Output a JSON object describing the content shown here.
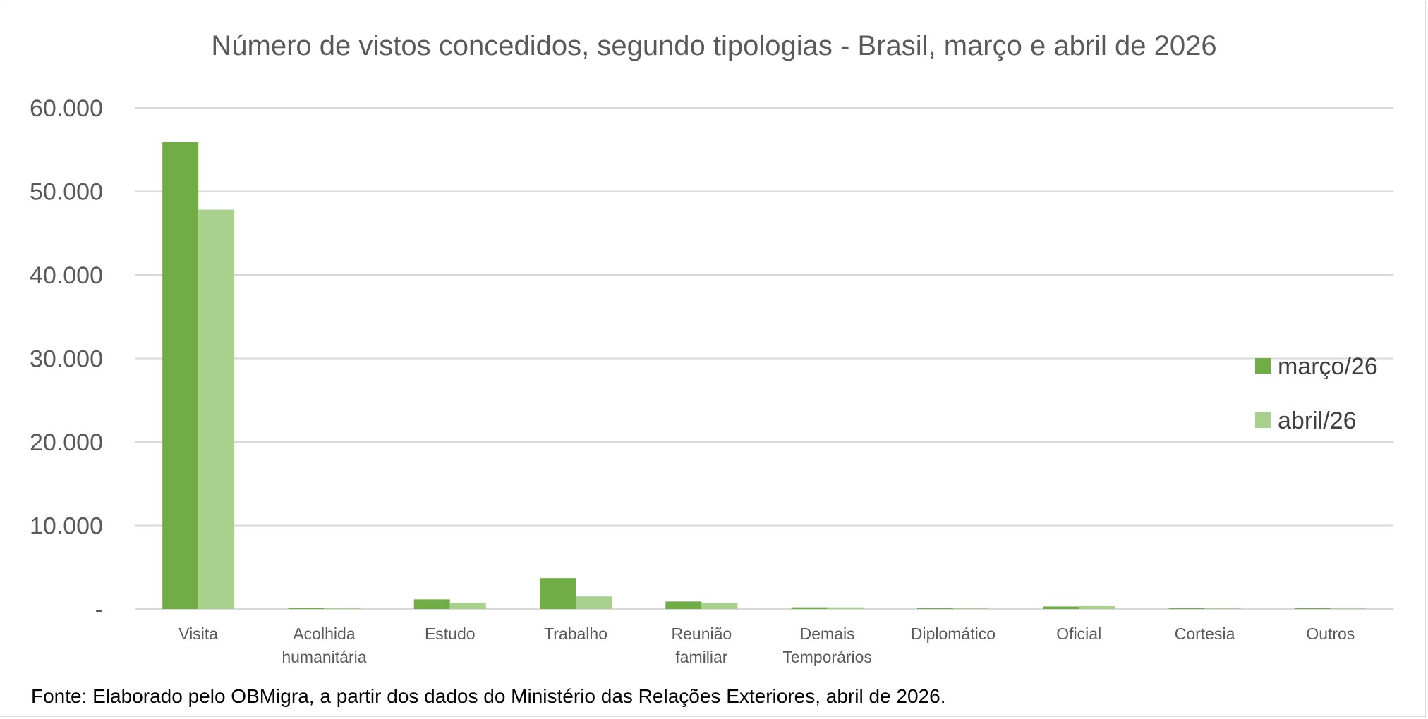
{
  "footnote": "Fonte: Elaborado pelo OBMigra, a partir dos dados do Ministério das Relações Exteriores, abril de 2026.",
  "colors": {
    "march": "#70ad47",
    "april": "#a9d18e",
    "grid": "#d9d9d9",
    "text": "#595959"
  },
  "chart_data": {
    "type": "bar",
    "title": "Número de vistos concedidos, segundo tipologias - Brasil, março e abril de 2026",
    "xlabel": "",
    "ylabel": "",
    "ylim": [
      0,
      60000
    ],
    "y_ticks": [
      0,
      10000,
      20000,
      30000,
      40000,
      50000,
      60000
    ],
    "y_tick_labels": [
      "-",
      "10.000",
      "20.000",
      "30.000",
      "40.000",
      "50.000",
      "60.000"
    ],
    "grid": true,
    "legend_position": "right",
    "categories": [
      [
        "Visita"
      ],
      [
        "Acolhida",
        "humanitária"
      ],
      [
        "Estudo"
      ],
      [
        "Trabalho"
      ],
      [
        "Reunião",
        "familiar"
      ],
      [
        "Demais",
        "Temporários"
      ],
      [
        "Diplomático"
      ],
      [
        "Oficial"
      ],
      [
        "Cortesia"
      ],
      [
        "Outros"
      ]
    ],
    "series": [
      {
        "name": "março/26",
        "color": "#70ad47",
        "values": [
          55900,
          150,
          1150,
          3700,
          900,
          200,
          120,
          300,
          110,
          90
        ]
      },
      {
        "name": "abril/26",
        "color": "#a9d18e",
        "values": [
          47800,
          120,
          750,
          1500,
          750,
          200,
          80,
          400,
          80,
          70
        ]
      }
    ]
  }
}
